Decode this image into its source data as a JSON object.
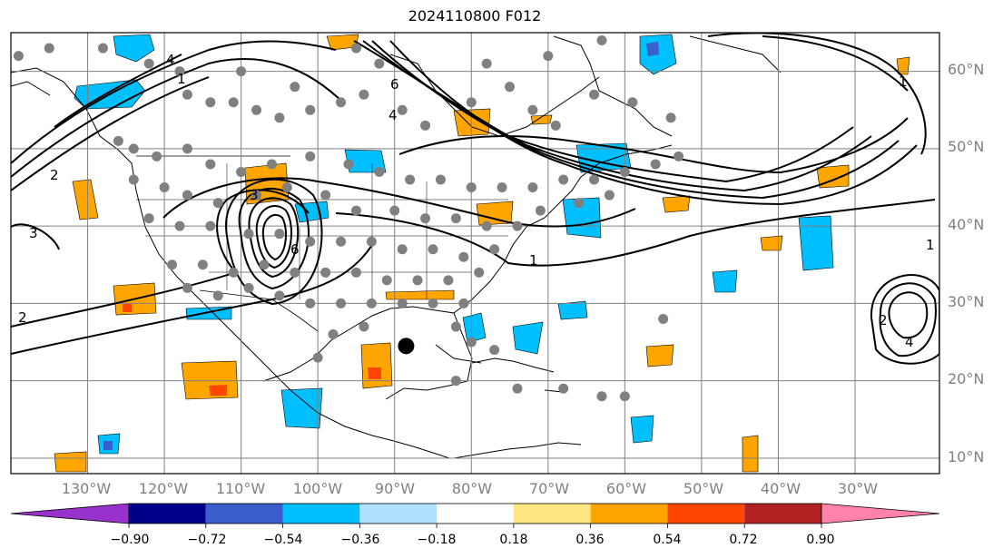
{
  "title": "2024110800 F012",
  "lat_labels": [
    {
      "text": "60°N",
      "lat": 60
    },
    {
      "text": "50°N",
      "lat": 50
    },
    {
      "text": "40°N",
      "lat": 40
    },
    {
      "text": "30°N",
      "lat": 30
    },
    {
      "text": "20°N",
      "lat": 20
    },
    {
      "text": "10°N",
      "lat": 10
    }
  ],
  "lon_labels": [
    {
      "text": "130°W",
      "lon": -130
    },
    {
      "text": "120°W",
      "lon": -120
    },
    {
      "text": "110°W",
      "lon": -110
    },
    {
      "text": "100°W",
      "lon": -100
    },
    {
      "text": "90°W",
      "lon": -90
    },
    {
      "text": "80°W",
      "lon": -80
    },
    {
      "text": "70°W",
      "lon": -70
    },
    {
      "text": "60°W",
      "lon": -60
    },
    {
      "text": "50°W",
      "lon": -50
    },
    {
      "text": "40°W",
      "lon": -40
    },
    {
      "text": "30°W",
      "lon": -30
    }
  ],
  "extent": {
    "lon_min": -140,
    "lon_max": -19,
    "lat_min": 8,
    "lat_max": 65
  },
  "colorbar": {
    "ticks": [
      "−0.90",
      "−0.72",
      "−0.54",
      "−0.36",
      "−0.18",
      "0.18",
      "0.36",
      "0.54",
      "0.72",
      "0.90"
    ],
    "colors": [
      "#9932cc",
      "#00008b",
      "#3a5fcd",
      "#00bfff",
      "#b0e2ff",
      "#ffffff",
      "#ffe680",
      "#ffa500",
      "#ff4500",
      "#b22222",
      "#ff82ab"
    ]
  },
  "contour_labels": [
    "1",
    "2",
    "3",
    "4",
    "6"
  ],
  "storm_marker": {
    "lon": -88.5,
    "lat": 24.5
  },
  "colors": {
    "land_line": "#000000",
    "grid": "#808080",
    "obs_dot": "#808080",
    "contour": "#000000"
  }
}
